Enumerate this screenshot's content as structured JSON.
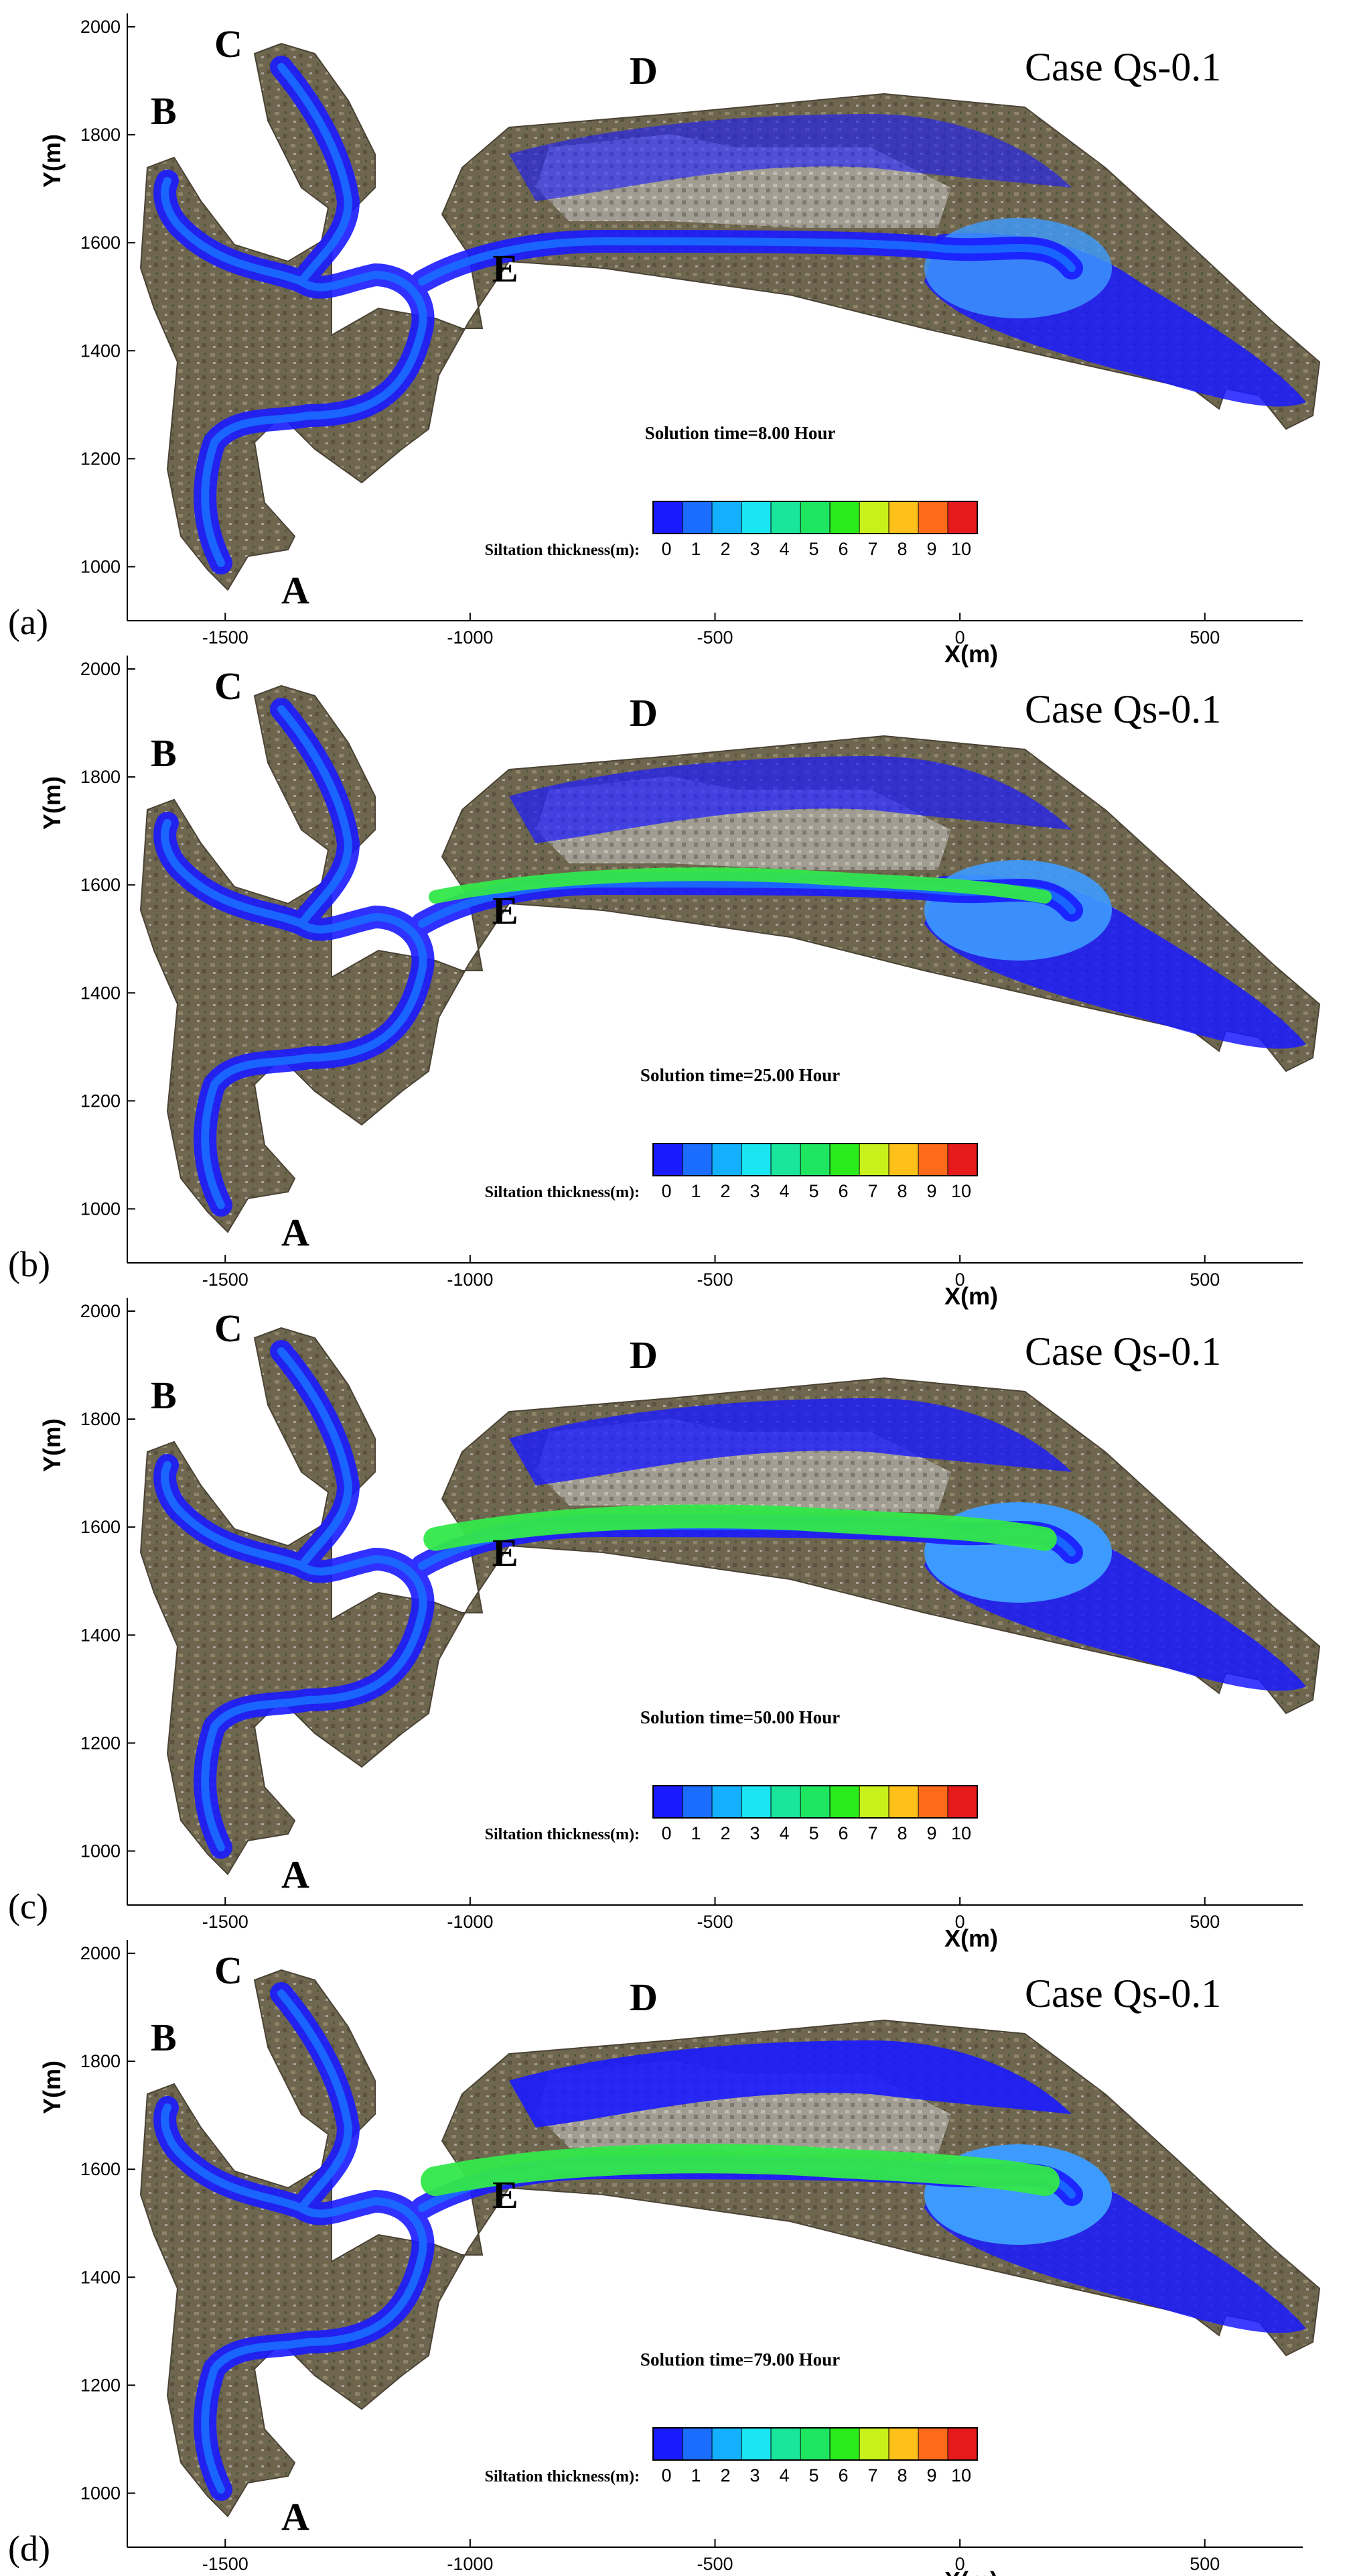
{
  "case_label": "Case Qs-0.1",
  "axes": {
    "xlabel": "X(m)",
    "ylabel": "Y(m)",
    "xlim": [
      -1700,
      700
    ],
    "ylim": [
      900,
      2000
    ],
    "xticks": [
      "-1500",
      "-1000",
      "-500",
      "0",
      "500"
    ],
    "yticks": [
      "1000",
      "1200",
      "1400",
      "1600",
      "1800",
      "2000"
    ]
  },
  "place_labels": [
    "A",
    "B",
    "C",
    "D",
    "E"
  ],
  "legend": {
    "title": "Siltation thickness(m):",
    "ticks": [
      "0",
      "1",
      "2",
      "3",
      "4",
      "5",
      "6",
      "7",
      "8",
      "9",
      "10"
    ],
    "colors": [
      "#1a1aff",
      "#1a6dff",
      "#12b0ff",
      "#19e6f0",
      "#19e69a",
      "#1ee660",
      "#2aeb1c",
      "#c8f01a",
      "#ffc01a",
      "#ff6a1a",
      "#e61a1a"
    ]
  },
  "panels": [
    {
      "label": "(a)",
      "solution_time": "Solution time=8.00 Hour"
    },
    {
      "label": "(b)",
      "solution_time": "Solution time=25.00 Hour"
    },
    {
      "label": "(c)",
      "solution_time": "Solution time=50.00 Hour"
    },
    {
      "label": "(d)",
      "solution_time": "Solution time=79.00 Hour"
    }
  ],
  "colors": {
    "terrain": "#6f6650",
    "terrain_light": "#8e8468",
    "urban": "#a7a39a",
    "deep_deposit": "#1a1aff",
    "mid_deposit": "#1a6dff",
    "light_deposit": "#3d9bff",
    "green_deposit": "#33e84a"
  }
}
